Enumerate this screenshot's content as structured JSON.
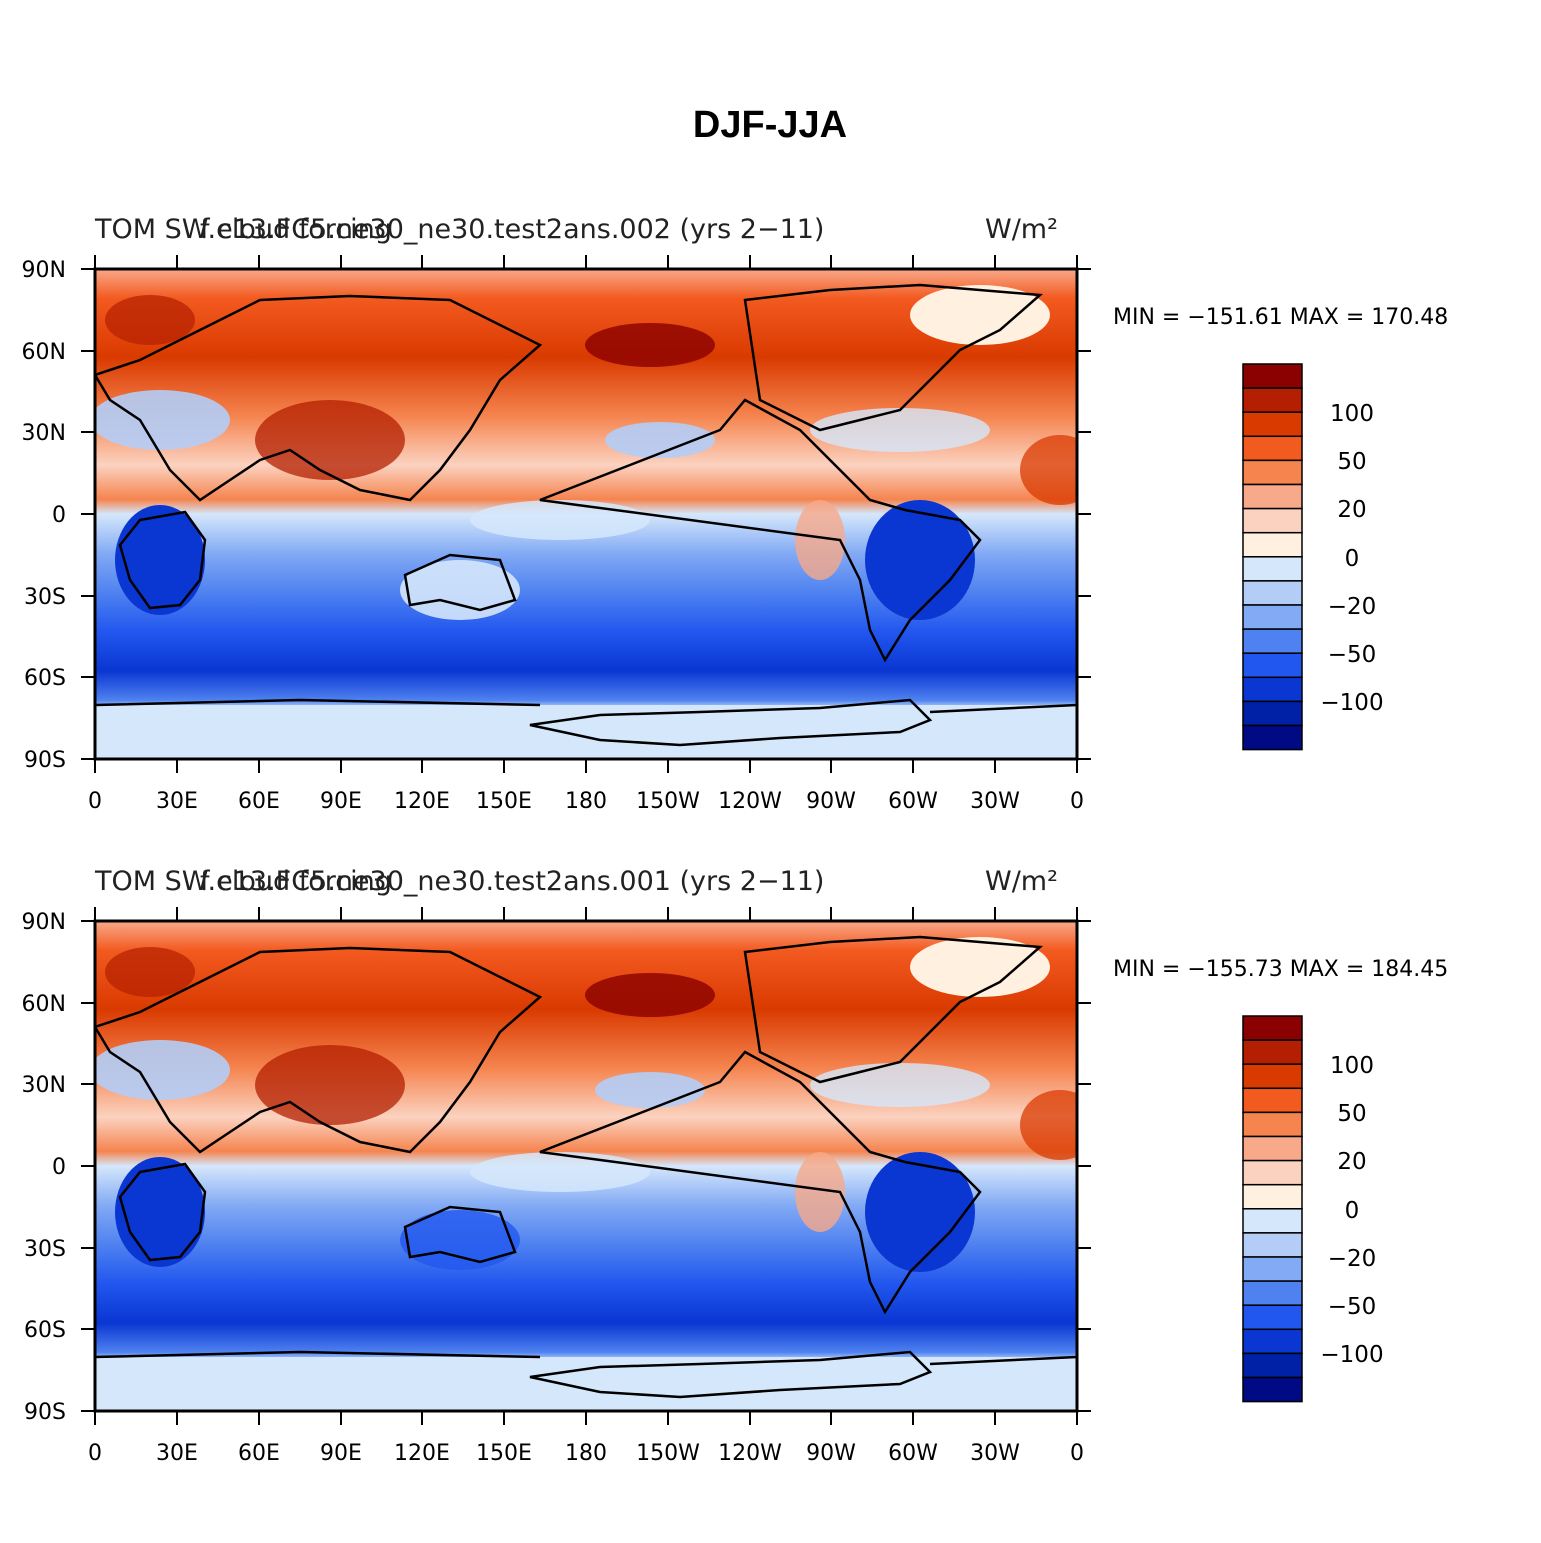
{
  "title": "DJF-JJA",
  "panels": [
    {
      "title_left": "TOM SW cloud forcing",
      "title_overlap": "f.e13.FC5.ne30_ne30.test2ans.002 (yrs 2−11)",
      "units": "W/m²",
      "stats": "MIN = −151.61  MAX = 170.48"
    },
    {
      "title_left": "TOM SW cloud forcing",
      "title_overlap": "f.e13.FC5.ne30_ne30.test2ans.001 (yrs 2−11)",
      "units": "W/m²",
      "stats": "MIN = −155.73  MAX = 184.45"
    }
  ],
  "lat_labels": [
    "90N",
    "60N",
    "30N",
    "0",
    "30S",
    "60S",
    "90S"
  ],
  "lon_labels": [
    "0",
    "30E",
    "60E",
    "90E",
    "120E",
    "150E",
    "180",
    "150W",
    "120W",
    "90W",
    "60W",
    "30W",
    "0"
  ],
  "colorbar": {
    "colors": [
      "#8b0000",
      "#b31f00",
      "#d93a00",
      "#f35a20",
      "#f5844f",
      "#f8a98a",
      "#fbd2c0",
      "#fff0e0",
      "#d5e7fb",
      "#b3cdf7",
      "#83aaf4",
      "#4f82f0",
      "#2257ef",
      "#0a36d2",
      "#0020a5",
      "#000a85"
    ],
    "labels": [
      "100",
      "50",
      "20",
      "0",
      "−20",
      "−50",
      "−100"
    ]
  }
}
